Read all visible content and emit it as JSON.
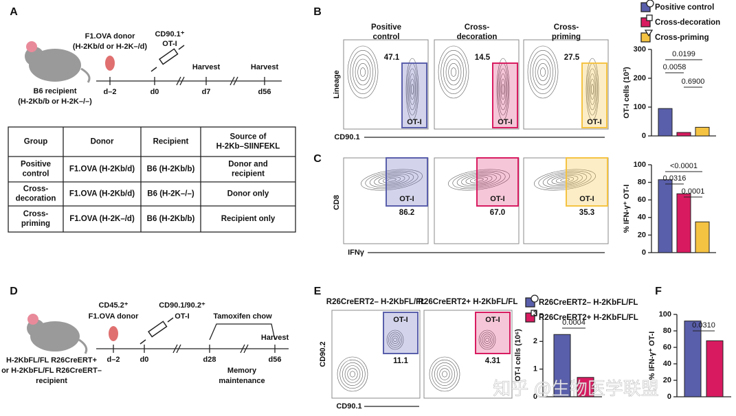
{
  "panel_labels": [
    "A",
    "B",
    "C",
    "D",
    "E",
    "F"
  ],
  "panel_a": {
    "donor": "F1.OVA donor",
    "donor_mhc": "(H-2Kb/d or H-2K–/d)",
    "cells": "CD90.1⁺",
    "cells_name": "OT-I",
    "harvest": [
      "Harvest",
      "Harvest"
    ],
    "recipient": "B6 recipient",
    "recipient_mhc": "(H-2Kb/b or H-2K–/–)",
    "days": [
      "d–2",
      "d0",
      "d7",
      "d56"
    ]
  },
  "table": {
    "header": [
      [
        "Group"
      ],
      [
        "Donor"
      ],
      [
        "Recipient"
      ],
      [
        "Source of",
        "H-2Kb–SIINFEKL"
      ]
    ],
    "rows": [
      [
        [
          "Positive",
          "control"
        ],
        [
          "F1.OVA (H-2Kb/d)"
        ],
        [
          "B6 (H-2Kb/b)"
        ],
        [
          "Donor and",
          "recipient"
        ]
      ],
      [
        [
          "Cross-",
          "decoration"
        ],
        [
          "F1.OVA (H-2Kb/d)"
        ],
        [
          "B6 (H-2K–/–)"
        ],
        [
          "Donor only"
        ]
      ],
      [
        [
          "Cross-",
          "priming"
        ],
        [
          "F1.OVA (H-2K–/d)"
        ],
        [
          "B6 (H-2Kb/b)"
        ],
        [
          "Recipient only"
        ]
      ]
    ]
  },
  "panel_b": {
    "titles": [
      [
        "Positive",
        "control"
      ],
      [
        "Cross-",
        "decoration"
      ],
      [
        "Cross-",
        "priming"
      ]
    ],
    "gates": [
      "47.1",
      "14.5",
      "27.5"
    ],
    "gate_label": "OT-I",
    "y_label": "Lineage",
    "x_label": "CD90.1",
    "bar": {
      "legend": [
        "Positive control",
        "Cross-decoration",
        "Cross-priming"
      ],
      "y_label": "OT-I cells (10³)",
      "ylim": [
        0,
        300
      ],
      "yticks": [
        0,
        100,
        200,
        300
      ],
      "values": [
        95,
        12,
        30
      ],
      "colors": [
        "#5a5fab",
        "#d81b60",
        "#f5c342"
      ],
      "pvalues": [
        "0.0199",
        "0.0058",
        "0.6900"
      ]
    }
  },
  "panel_c": {
    "gates": [
      "86.2",
      "67.0",
      "35.3"
    ],
    "gate_label": "OT-I",
    "y_label": "CD8",
    "x_label": "IFNγ",
    "bar": {
      "y_label": "% IFN-γ⁺ OT-I",
      "ylim": [
        0,
        100
      ],
      "yticks": [
        0,
        20,
        40,
        60,
        80,
        100
      ],
      "values": [
        83,
        67,
        35
      ],
      "colors": [
        "#5a5fab",
        "#d81b60",
        "#f5c342"
      ],
      "pvalues": [
        "<0.0001",
        "0.0316",
        "0.0001"
      ]
    }
  },
  "panel_d": {
    "donor_marker": "CD45.2⁺",
    "donor": "F1.OVA donor",
    "cells": "CD90.1/90.2⁺",
    "cells_name": "OT-I",
    "treatment": "Tamoxifen chow",
    "harvest": "Harvest",
    "days": [
      "d–2",
      "d0",
      "d28",
      "d56"
    ],
    "phase": [
      "Memory",
      "maintenance"
    ],
    "recipient": [
      "H-2KbFL/FL R26CreERT+",
      "or H-2KbFL/FL R26CreERT–",
      "recipient"
    ]
  },
  "panel_e": {
    "legend": [
      "R26CreERT2– H-2KbFL/FL",
      "R26CreERT2+ H-2KbFL/FL"
    ],
    "gates": [
      "11.1",
      "4.31"
    ],
    "gate_label": "OT-I",
    "y_label": "CD90.2",
    "x_label": "CD90.1",
    "bar": {
      "y_label": "OT-I cells (10⁶)",
      "ylim": [
        0,
        3
      ],
      "yticks": [
        0,
        1,
        2,
        3
      ],
      "values": [
        2.25,
        0.7
      ],
      "colors": [
        "#5a5fab",
        "#d81b60"
      ],
      "pvalues": [
        "0.0004"
      ]
    }
  },
  "panel_f": {
    "bar": {
      "y_label": "% IFN-γ⁺ OT-I",
      "ylim": [
        0,
        100
      ],
      "yticks": [
        0,
        20,
        40,
        60,
        80,
        100
      ],
      "values": [
        92,
        68
      ],
      "colors": [
        "#5a5fab",
        "#d81b60"
      ],
      "pvalues": [
        "0.0310"
      ]
    }
  },
  "watermark": "知乎 @生物医学联盟"
}
